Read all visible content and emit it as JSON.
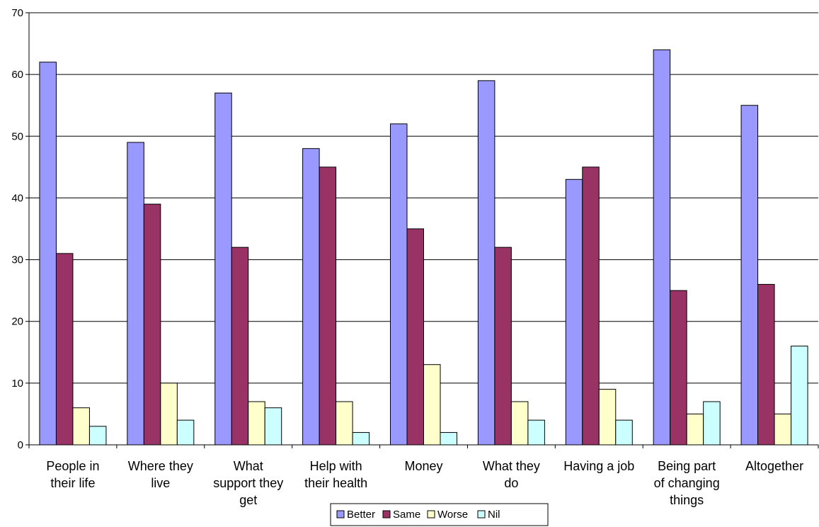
{
  "chart_data": {
    "type": "bar",
    "ylim": [
      0,
      70
    ],
    "yticks": [
      0,
      10,
      20,
      30,
      40,
      50,
      60,
      70
    ],
    "grid": "horizontal",
    "legend_position": "bottom-center",
    "categories": [
      [
        "People in",
        "their life"
      ],
      [
        "Where they",
        "live"
      ],
      [
        "What",
        "support they",
        "get"
      ],
      [
        "Help with",
        "their health"
      ],
      [
        "Money"
      ],
      [
        "What they",
        "do"
      ],
      [
        "Having a job"
      ],
      [
        "Being part",
        "of changing",
        "things"
      ],
      [
        "Altogether"
      ]
    ],
    "series": [
      {
        "name": "Better",
        "color": "#9999FF",
        "values": [
          62,
          49,
          57,
          48,
          52,
          59,
          43,
          64,
          55
        ]
      },
      {
        "name": "Same",
        "color": "#993366",
        "values": [
          31,
          39,
          32,
          45,
          35,
          32,
          45,
          25,
          26
        ]
      },
      {
        "name": "Worse",
        "color": "#FFFFCC",
        "values": [
          6,
          10,
          7,
          7,
          13,
          7,
          9,
          5,
          5
        ]
      },
      {
        "name": "Nil",
        "color": "#CCFFFF",
        "values": [
          3,
          4,
          6,
          2,
          2,
          4,
          4,
          7,
          16
        ]
      }
    ]
  }
}
